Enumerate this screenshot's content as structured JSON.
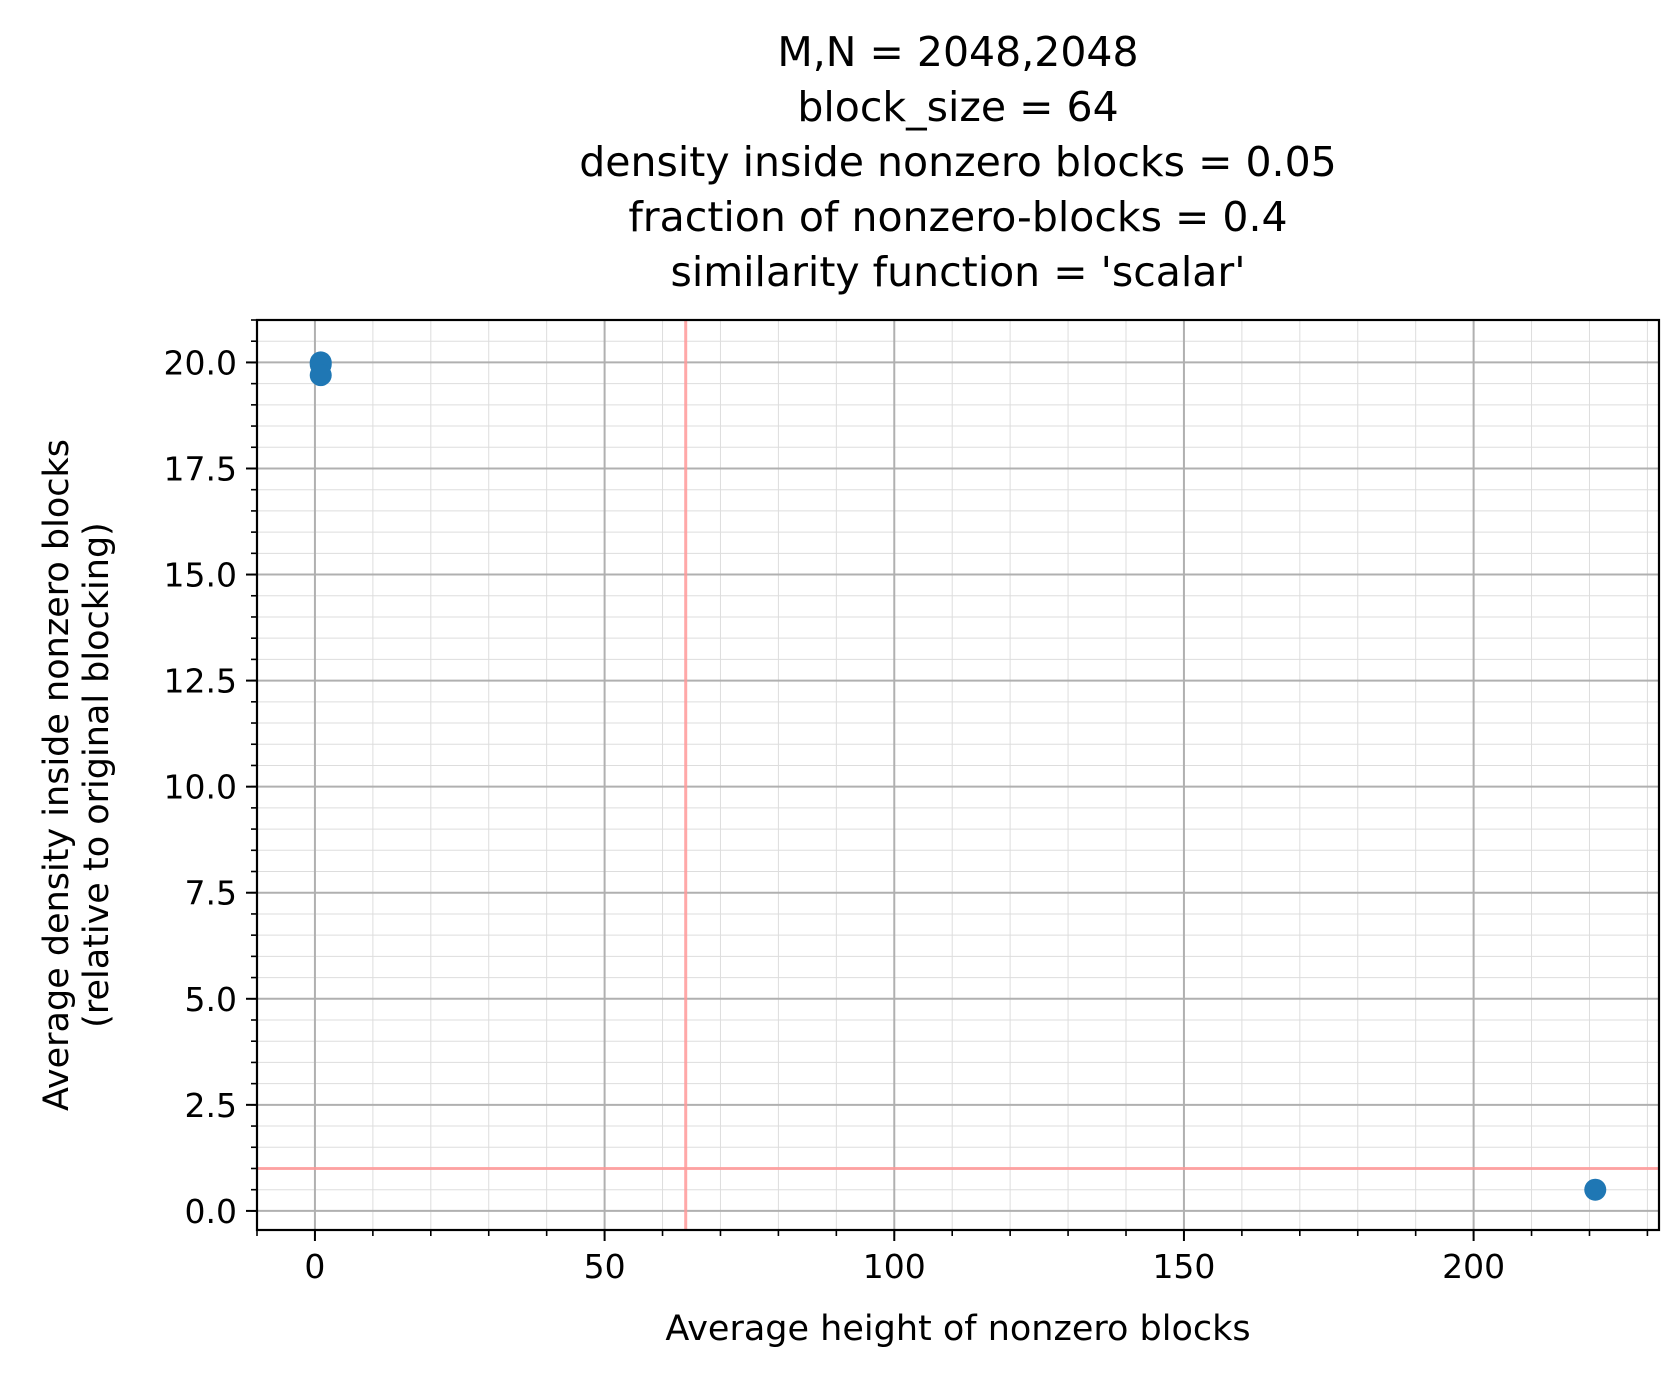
{
  "chart_data": {
    "type": "scatter",
    "title_lines": [
      "M,N = 2048,2048",
      "block_size = 64",
      "density inside nonzero blocks = 0.05",
      "fraction of nonzero-blocks = 0.4",
      "similarity function = 'scalar'"
    ],
    "xlabel": "Average height of nonzero blocks",
    "ylabel_lines": [
      "Average density inside nonzero blocks",
      "(relative to original blocking)"
    ],
    "xlim": [
      -10,
      232
    ],
    "ylim": [
      -0.45,
      21
    ],
    "x_ticks": [
      0,
      50,
      100,
      150,
      200
    ],
    "x_tick_labels": [
      "0",
      "50",
      "100",
      "150",
      "200"
    ],
    "x_minor_step": 10,
    "y_ticks": [
      0,
      2.5,
      5,
      7.5,
      10,
      12.5,
      15,
      17.5,
      20
    ],
    "y_tick_labels": [
      "0.0",
      "2.5",
      "5.0",
      "7.5",
      "10.0",
      "12.5",
      "15.0",
      "17.5",
      "20.0"
    ],
    "y_minor_step": 0.5,
    "grid": true,
    "series": [
      {
        "points": [
          {
            "x": 1,
            "y": 20.0
          },
          {
            "x": 1,
            "y": 19.95
          },
          {
            "x": 1,
            "y": 19.7
          },
          {
            "x": 221,
            "y": 0.5
          }
        ],
        "color": "#1f77b4"
      }
    ],
    "reference_lines": [
      {
        "orientation": "vertical",
        "value": 64,
        "color": "#ff9999"
      },
      {
        "orientation": "horizontal",
        "value": 1,
        "color": "#ff9999"
      }
    ]
  }
}
